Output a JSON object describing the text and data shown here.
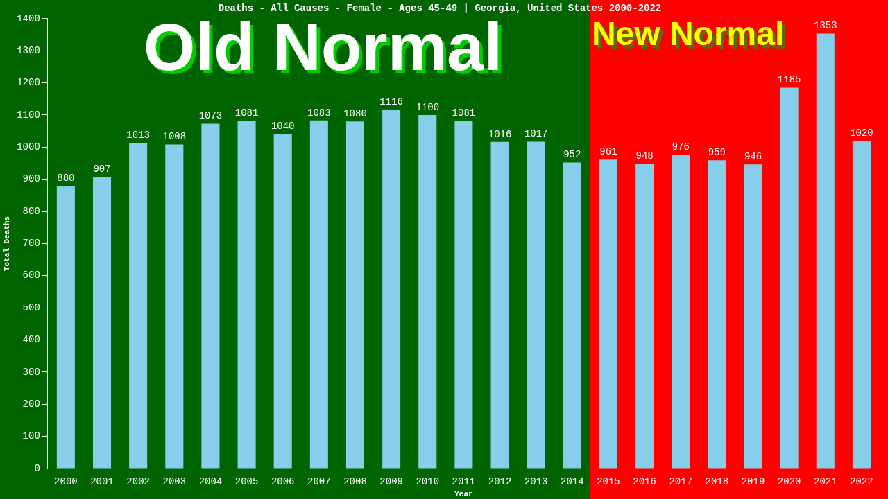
{
  "chart_data": {
    "type": "bar",
    "title": "Deaths - All Causes - Female - Ages 45-49 | Georgia, United States 2000-2022",
    "xlabel": "Year",
    "ylabel": "Total Deaths",
    "categories": [
      "2000",
      "2001",
      "2002",
      "2003",
      "2004",
      "2005",
      "2006",
      "2007",
      "2008",
      "2009",
      "2010",
      "2011",
      "2012",
      "2013",
      "2014",
      "2015",
      "2016",
      "2017",
      "2018",
      "2019",
      "2020",
      "2021",
      "2022"
    ],
    "values": [
      880,
      907,
      1013,
      1008,
      1073,
      1081,
      1040,
      1083,
      1080,
      1116,
      1100,
      1081,
      1016,
      1017,
      952,
      961,
      948,
      976,
      959,
      946,
      1185,
      1353,
      1020
    ],
    "color": "#87ceeb",
    "ylim": [
      0,
      1400
    ],
    "yticks": [
      0,
      100,
      200,
      300,
      400,
      500,
      600,
      700,
      800,
      900,
      1000,
      1100,
      1200,
      1300,
      1400
    ],
    "grid": false,
    "legend": false,
    "data_labels": true,
    "bands": [
      {
        "axis": "x",
        "from": "2000",
        "to": "2014",
        "label": "Old Normal",
        "color": "#006400"
      },
      {
        "axis": "x",
        "from": "2015",
        "to": "2022",
        "label": "New Normal",
        "color": "#ff0000"
      }
    ]
  }
}
